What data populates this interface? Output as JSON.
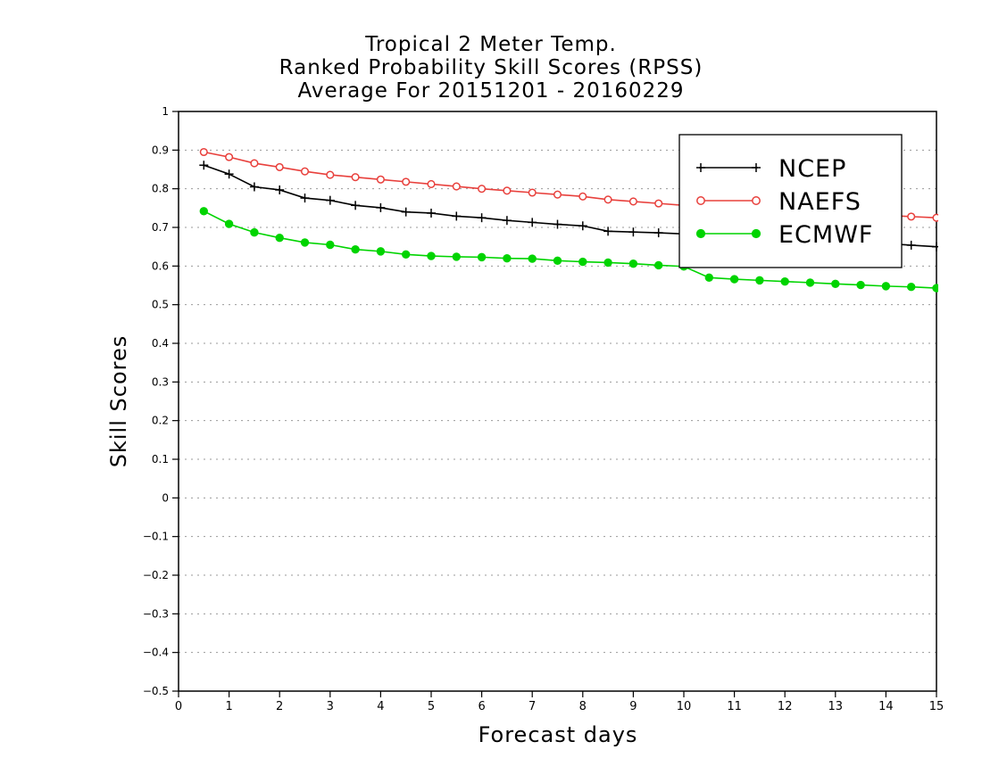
{
  "chart_data": {
    "type": "line",
    "title": [
      "Tropical 2 Meter Temp.",
      "Ranked Probability Skill Scores (RPSS)",
      "Average For 20151201 - 20160229"
    ],
    "xlabel": "Forecast days",
    "ylabel": "Skill Scores",
    "xlim": [
      0,
      15
    ],
    "ylim": [
      -0.5,
      1
    ],
    "xticks": [
      0,
      1,
      2,
      3,
      4,
      5,
      6,
      7,
      8,
      9,
      10,
      11,
      12,
      13,
      14,
      15
    ],
    "xtick_labels": [
      "0",
      "1",
      "2",
      "3",
      "4",
      "5",
      "6",
      "7",
      "8",
      "9",
      "10",
      "11",
      "12",
      "13",
      "14",
      "15"
    ],
    "yticks": [
      -0.5,
      -0.4,
      -0.3,
      -0.2,
      -0.1,
      0,
      0.1,
      0.2,
      0.3,
      0.4,
      0.5,
      0.6,
      0.7,
      0.8,
      0.9,
      1
    ],
    "ytick_labels": [
      "−0.5",
      "−0.4",
      "−0.3",
      "−0.2",
      "−0.1",
      "0",
      "0.1",
      "0.2",
      "0.3",
      "0.4",
      "0.5",
      "0.6",
      "0.7",
      "0.8",
      "0.9",
      "1"
    ],
    "grid": "horizontal dotted",
    "legend_position": "top-right",
    "x": [
      0.5,
      1,
      1.5,
      2,
      2.5,
      3,
      3.5,
      4,
      4.5,
      5,
      5.5,
      6,
      6.5,
      7,
      7.5,
      8,
      8.5,
      9,
      9.5,
      10,
      10.5,
      11,
      11.5,
      12,
      12.5,
      13,
      13.5,
      14,
      14.5,
      15
    ],
    "series": [
      {
        "name": "NCEP",
        "color": "#000000",
        "marker": "plus",
        "values": [
          0.861,
          0.838,
          0.805,
          0.797,
          0.776,
          0.77,
          0.757,
          0.751,
          0.74,
          0.737,
          0.729,
          0.725,
          0.718,
          0.713,
          0.708,
          0.704,
          0.69,
          0.688,
          0.686,
          0.683,
          0.678,
          0.676,
          0.673,
          0.67,
          0.667,
          0.664,
          0.661,
          0.658,
          0.654,
          0.65
        ]
      },
      {
        "name": "NAEFS",
        "color": "#e8403c",
        "marker": "open-circle",
        "values": [
          0.895,
          0.882,
          0.866,
          0.856,
          0.845,
          0.836,
          0.83,
          0.824,
          0.818,
          0.812,
          0.806,
          0.8,
          0.795,
          0.79,
          0.785,
          0.78,
          0.772,
          0.767,
          0.762,
          0.757,
          0.752,
          0.748,
          0.745,
          0.742,
          0.739,
          0.737,
          0.734,
          0.731,
          0.728,
          0.725
        ]
      },
      {
        "name": "ECMWF",
        "color": "#00d400",
        "marker": "filled-circle",
        "values": [
          0.742,
          0.709,
          0.687,
          0.673,
          0.661,
          0.655,
          0.643,
          0.638,
          0.63,
          0.626,
          0.624,
          0.623,
          0.62,
          0.619,
          0.614,
          0.611,
          0.609,
          0.606,
          0.602,
          0.599,
          0.57,
          0.566,
          0.563,
          0.56,
          0.557,
          0.554,
          0.551,
          0.548,
          0.546,
          0.543
        ]
      }
    ]
  }
}
